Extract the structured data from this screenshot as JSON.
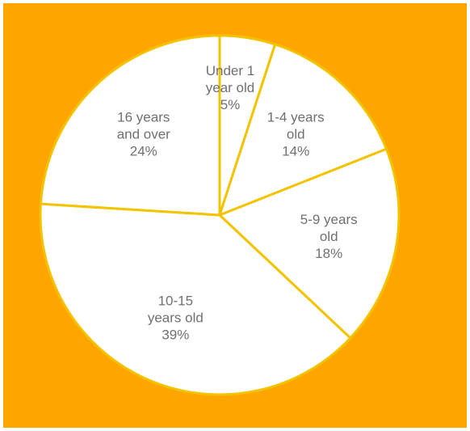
{
  "colors": {
    "background": "#ffa500",
    "slice_fill": "#ffffff",
    "slice_stroke": "#f3c300",
    "label_text": "#707070"
  },
  "chart_data": {
    "type": "pie",
    "title": "",
    "legend": "none",
    "start_angle_deg": 90,
    "direction": "clockwise",
    "slices": [
      {
        "label_lines": [
          "Under 1",
          "year old",
          "5%"
        ],
        "value": 5
      },
      {
        "label_lines": [
          "1-4 years",
          "old",
          "14%"
        ],
        "value": 14
      },
      {
        "label_lines": [
          "5-9 years",
          "old",
          "18%"
        ],
        "value": 18
      },
      {
        "label_lines": [
          "10-15",
          "years old",
          "39%"
        ],
        "value": 39
      },
      {
        "label_lines": [
          "16 years",
          "and over",
          "24%"
        ],
        "value": 24
      }
    ]
  }
}
